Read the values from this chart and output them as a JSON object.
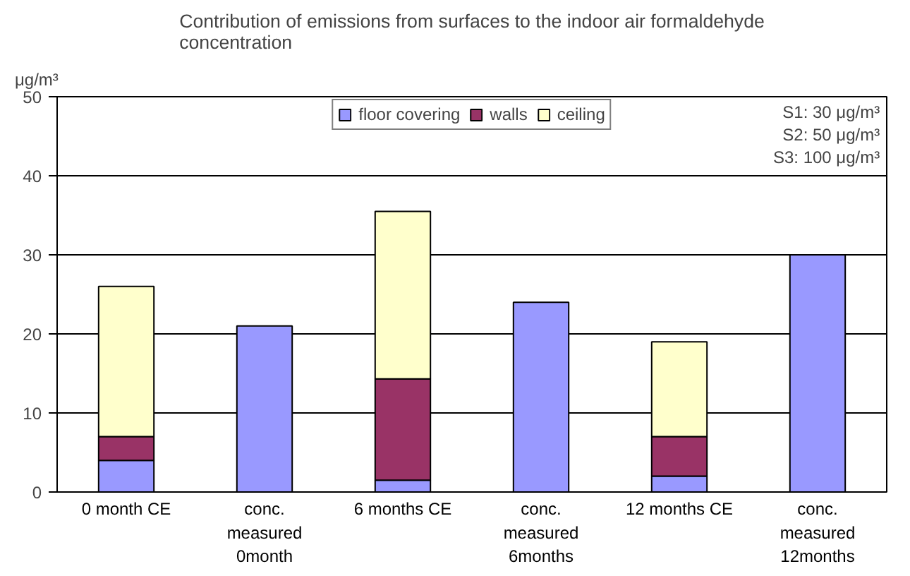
{
  "chart_data": {
    "type": "bar",
    "stacked": true,
    "title": "Contribution of emissions from surfaces to the indoor air formaldehyde\nconcentration",
    "ylabel": "μg/m³",
    "categories": [
      "0 month CE",
      "conc.\nmeasured\n0month",
      "6 months CE",
      "conc.\nmeasured\n6months",
      "12 months CE",
      "conc.\nmeasured\n12months"
    ],
    "series": [
      {
        "name": "floor covering",
        "color": "#9999ff",
        "values": [
          4,
          21,
          1.5,
          24,
          2,
          30
        ]
      },
      {
        "name": "walls",
        "color": "#993366",
        "values": [
          3,
          null,
          12.8,
          null,
          5,
          null
        ]
      },
      {
        "name": "ceiling",
        "color": "#ffffcc",
        "values": [
          19,
          null,
          21.2,
          null,
          12,
          null
        ]
      }
    ],
    "ylim": [
      0,
      50
    ],
    "yticks": [
      0,
      10,
      20,
      30,
      40,
      50
    ],
    "grid": "y",
    "legend": "top",
    "annotations": [
      "S1: 30 μg/m³",
      "S2: 50 μg/m³",
      "S3: 100 μg/m³"
    ]
  }
}
